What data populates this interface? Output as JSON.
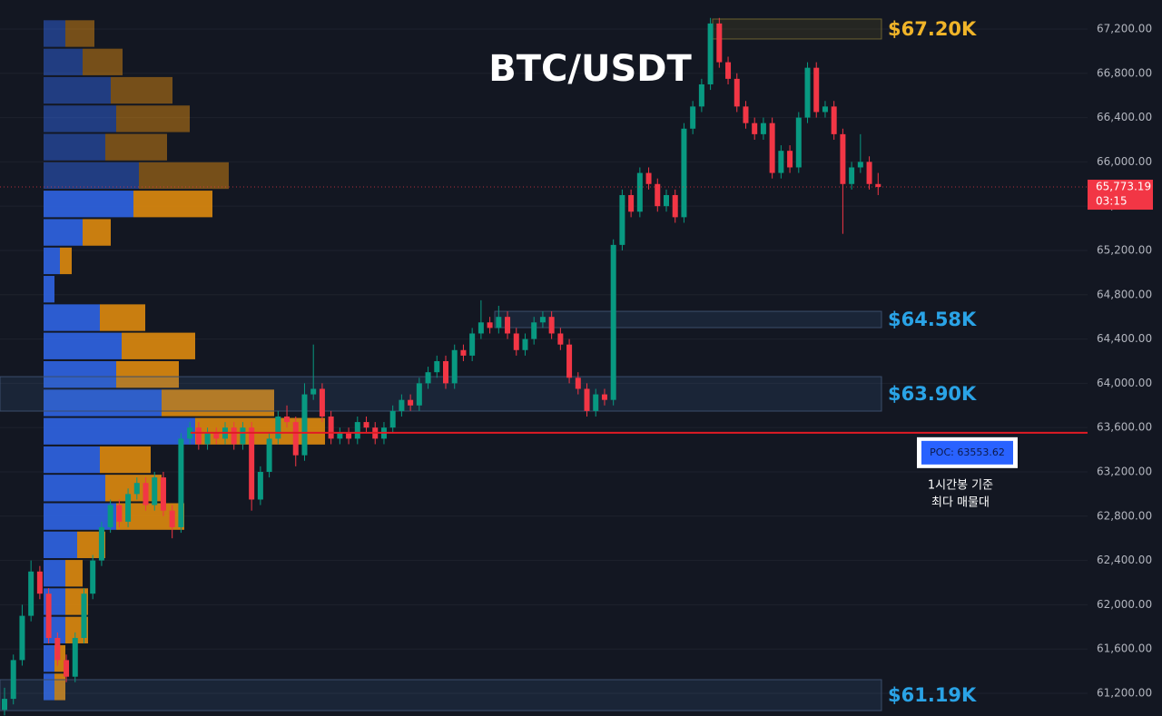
{
  "chart_data": {
    "type": "candlestick",
    "title": "BTC/USDT",
    "ylim": [
      60995,
      67462
    ],
    "yticks": [
      {
        "value": 61200,
        "label": "61,200.00"
      },
      {
        "value": 61600,
        "label": "61,600.00"
      },
      {
        "value": 62000,
        "label": "62,000.00"
      },
      {
        "value": 62400,
        "label": "62,400.00"
      },
      {
        "value": 62800,
        "label": "62,800.00"
      },
      {
        "value": 63200,
        "label": "63,200.00"
      },
      {
        "value": 63600,
        "label": "63,600.00"
      },
      {
        "value": 64000,
        "label": "64,000.00"
      },
      {
        "value": 64400,
        "label": "64,400.00"
      },
      {
        "value": 64800,
        "label": "64,800.00"
      },
      {
        "value": 65200,
        "label": "65,200.00"
      },
      {
        "value": 65600,
        "label": "65,600.00"
      },
      {
        "value": 66000,
        "label": "66,000.00"
      },
      {
        "value": 66400,
        "label": "66,400.00"
      },
      {
        "value": 66800,
        "label": "66,800.00"
      },
      {
        "value": 67200,
        "label": "67,200.00"
      }
    ],
    "grid": true,
    "up_color": "#089981",
    "down_color": "#f23645",
    "candles": [
      [
        61050,
        61250,
        61000,
        61150
      ],
      [
        61150,
        61550,
        61100,
        61500
      ],
      [
        61500,
        62000,
        61450,
        61900
      ],
      [
        61900,
        62400,
        61850,
        62300
      ],
      [
        62300,
        62350,
        62050,
        62100
      ],
      [
        62100,
        62150,
        61650,
        61700
      ],
      [
        61700,
        61750,
        61450,
        61500
      ],
      [
        61500,
        61550,
        61300,
        61350
      ],
      [
        61350,
        61750,
        61300,
        61700
      ],
      [
        61700,
        62150,
        61650,
        62100
      ],
      [
        62100,
        62450,
        62050,
        62400
      ],
      [
        62400,
        62750,
        62350,
        62700
      ],
      [
        62700,
        62950,
        62650,
        62900
      ],
      [
        62900,
        62950,
        62700,
        62750
      ],
      [
        62750,
        63050,
        62700,
        63000
      ],
      [
        63000,
        63150,
        62950,
        63100
      ],
      [
        63100,
        63150,
        62850,
        62900
      ],
      [
        62900,
        63200,
        62850,
        63150
      ],
      [
        63150,
        63200,
        62800,
        62850
      ],
      [
        62850,
        62900,
        62600,
        62700
      ],
      [
        62700,
        63550,
        62650,
        63500
      ],
      [
        63500,
        63650,
        63450,
        63600
      ],
      [
        63600,
        63650,
        63400,
        63450
      ],
      [
        63450,
        63600,
        63400,
        63550
      ],
      [
        63550,
        63600,
        63450,
        63500
      ],
      [
        63500,
        63650,
        63450,
        63600
      ],
      [
        63600,
        63650,
        63400,
        63450
      ],
      [
        63450,
        63650,
        63400,
        63600
      ],
      [
        63600,
        63650,
        62850,
        62950
      ],
      [
        62950,
        63250,
        62900,
        63200
      ],
      [
        63200,
        63550,
        63150,
        63500
      ],
      [
        63500,
        63750,
        63450,
        63700
      ],
      [
        63700,
        63800,
        63600,
        63650
      ],
      [
        63650,
        63700,
        63250,
        63350
      ],
      [
        63350,
        64000,
        63300,
        63900
      ],
      [
        63900,
        64350,
        63850,
        63950
      ],
      [
        63950,
        64000,
        63650,
        63700
      ],
      [
        63700,
        63750,
        63450,
        63500
      ],
      [
        63500,
        63600,
        63450,
        63550
      ],
      [
        63550,
        63600,
        63450,
        63500
      ],
      [
        63500,
        63700,
        63450,
        63650
      ],
      [
        63650,
        63700,
        63550,
        63600
      ],
      [
        63600,
        63650,
        63450,
        63500
      ],
      [
        63500,
        63650,
        63450,
        63600
      ],
      [
        63600,
        63800,
        63550,
        63750
      ],
      [
        63750,
        63900,
        63700,
        63850
      ],
      [
        63850,
        63900,
        63750,
        63800
      ],
      [
        63800,
        64050,
        63750,
        64000
      ],
      [
        64000,
        64150,
        63950,
        64100
      ],
      [
        64100,
        64250,
        64050,
        64200
      ],
      [
        64200,
        64250,
        63950,
        64000
      ],
      [
        64000,
        64350,
        63950,
        64300
      ],
      [
        64300,
        64350,
        64200,
        64250
      ],
      [
        64250,
        64500,
        64200,
        64450
      ],
      [
        64450,
        64750,
        64400,
        64550
      ],
      [
        64550,
        64600,
        64450,
        64500
      ],
      [
        64500,
        64700,
        64450,
        64600
      ],
      [
        64600,
        64650,
        64400,
        64450
      ],
      [
        64450,
        64500,
        64250,
        64300
      ],
      [
        64300,
        64450,
        64250,
        64400
      ],
      [
        64400,
        64600,
        64350,
        64550
      ],
      [
        64550,
        64650,
        64500,
        64600
      ],
      [
        64600,
        64650,
        64400,
        64450
      ],
      [
        64450,
        64500,
        64300,
        64350
      ],
      [
        64350,
        64400,
        64000,
        64050
      ],
      [
        64050,
        64100,
        63900,
        63950
      ],
      [
        63950,
        64000,
        63700,
        63750
      ],
      [
        63750,
        63950,
        63700,
        63900
      ],
      [
        63900,
        63950,
        63800,
        63850
      ],
      [
        63850,
        65300,
        63800,
        65250
      ],
      [
        65250,
        65750,
        65200,
        65700
      ],
      [
        65700,
        65750,
        65500,
        65550
      ],
      [
        65550,
        65950,
        65500,
        65900
      ],
      [
        65900,
        65950,
        65750,
        65800
      ],
      [
        65800,
        65850,
        65550,
        65600
      ],
      [
        65600,
        65750,
        65550,
        65700
      ],
      [
        65700,
        65750,
        65450,
        65500
      ],
      [
        65500,
        66350,
        65450,
        66300
      ],
      [
        66300,
        66550,
        66250,
        66500
      ],
      [
        66500,
        66750,
        66450,
        66700
      ],
      [
        66700,
        67300,
        66650,
        67250
      ],
      [
        67250,
        67300,
        66850,
        66900
      ],
      [
        66900,
        66950,
        66700,
        66750
      ],
      [
        66750,
        66800,
        66450,
        66500
      ],
      [
        66500,
        66550,
        66300,
        66350
      ],
      [
        66350,
        66400,
        66200,
        66250
      ],
      [
        66250,
        66400,
        66200,
        66350
      ],
      [
        66350,
        66400,
        65850,
        65900
      ],
      [
        65900,
        66150,
        65850,
        66100
      ],
      [
        66100,
        66150,
        65900,
        65950
      ],
      [
        65950,
        66450,
        65900,
        66400
      ],
      [
        66400,
        66900,
        66350,
        66850
      ],
      [
        66850,
        66900,
        66400,
        66450
      ],
      [
        66450,
        66550,
        66400,
        66500
      ],
      [
        66500,
        66550,
        66200,
        66250
      ],
      [
        66250,
        66300,
        65350,
        65800
      ],
      [
        65800,
        66000,
        65750,
        65950
      ],
      [
        65950,
        66250,
        65900,
        66000
      ],
      [
        66000,
        66050,
        65750,
        65800
      ],
      [
        65800,
        65900,
        65700,
        65773.19
      ]
    ],
    "last_price": {
      "value": 65773.19,
      "label": "65,773.19"
    },
    "countdown": "03:15",
    "volume_profile": {
      "bin_size": 256.6,
      "buy_color": "#2f63e0",
      "sell_color": "#d9880f",
      "prices": [
        67159,
        66902,
        66646,
        66389,
        66133,
        65876,
        65620,
        65363,
        65106,
        64850,
        64593,
        64337,
        64080,
        63823,
        63567,
        63310,
        63054,
        62797,
        62541,
        62284,
        62028,
        61771,
        61514,
        61258
      ],
      "buy": [
        24,
        43,
        74,
        80,
        68,
        105,
        99,
        43,
        18,
        12,
        62,
        86,
        80,
        130,
        167,
        62,
        68,
        80,
        37,
        24,
        24,
        24,
        12,
        12
      ],
      "sell": [
        32,
        44,
        68,
        81,
        68,
        99,
        87,
        31,
        13,
        0,
        50,
        81,
        69,
        124,
        143,
        56,
        62,
        75,
        31,
        19,
        25,
        25,
        12,
        12
      ]
    },
    "zones": [
      {
        "low": 67110,
        "high": 67290,
        "label": "$67.20K",
        "color": "#f0b429"
      },
      {
        "low": 64503,
        "high": 64650,
        "label": "$64.58K",
        "color": "#2aa3e6"
      },
      {
        "low": 63749,
        "high": 64060,
        "label": "$63.90K",
        "color": "#2aa3e6"
      },
      {
        "low": 61044,
        "high": 61323,
        "label": "$61.19K",
        "color": "#2aa3e6"
      }
    ],
    "poc": {
      "value": 63553.62,
      "label": "POC: 63553.62",
      "color": "#e01b24"
    },
    "poc_note": [
      "1시간봉 기준",
      "최다 매물대"
    ]
  }
}
